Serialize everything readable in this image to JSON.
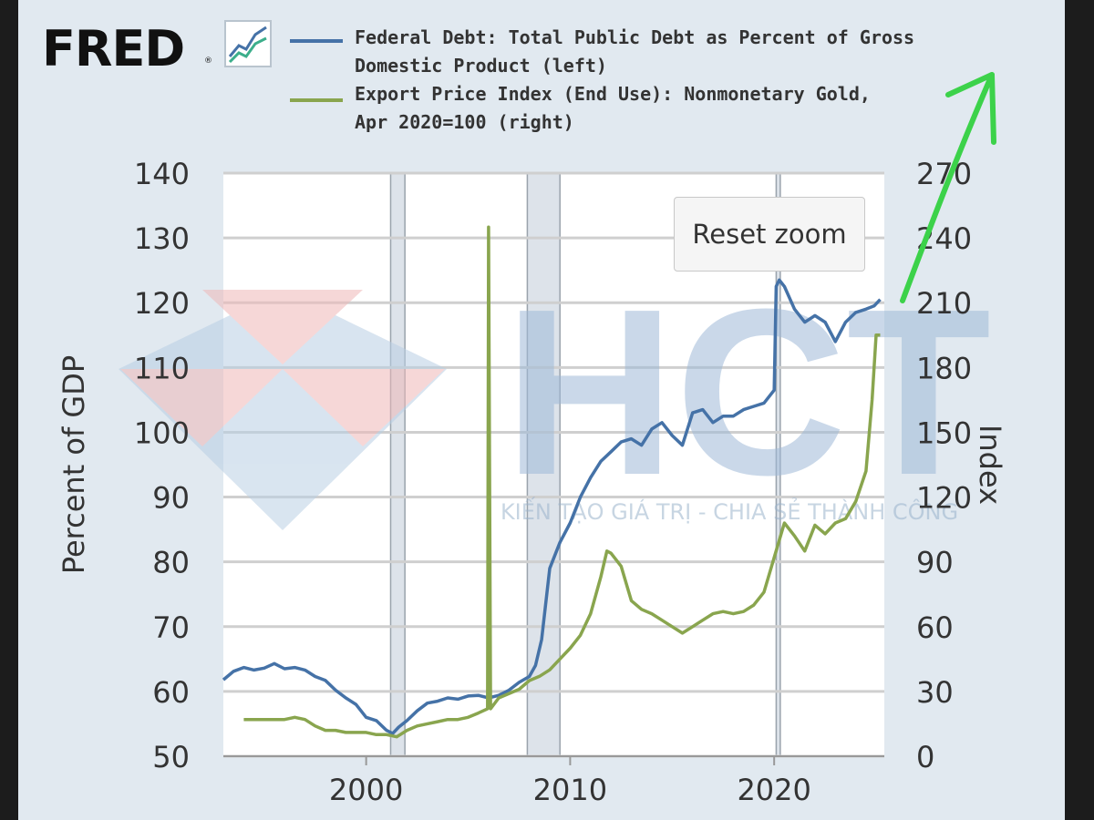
{
  "brand": {
    "name": "FRED",
    "mark": "®",
    "icon": "trend-chart-icon"
  },
  "legend": [
    {
      "lines": [
        "Federal Debt: Total Public Debt as Percent of Gross",
        "Domestic Product (left)"
      ],
      "color": "#4572a7"
    },
    {
      "lines": [
        "Export Price Index (End Use): Nonmonetary Gold,",
        "Apr 2020=100 (right)"
      ],
      "color": "#89a54e"
    }
  ],
  "controls": {
    "reset_zoom_label": "Reset zoom"
  },
  "watermark": {
    "letters": "HCT",
    "tagline": "KIẾN TẠO GIÁ TRỊ - CHIA SẺ THÀNH CÔNG"
  },
  "colors": {
    "debt": "#4572a7",
    "gold": "#89a54e",
    "recession": "#dde3ea",
    "annotation_arrow": "#3cd24a"
  },
  "chart_data": {
    "type": "line",
    "title": "",
    "xlabel": "",
    "ylabel_left": "Percent of GDP",
    "ylabel_right": "Index",
    "xlim": [
      1993.0,
      2025.4
    ],
    "ylim_left": [
      50,
      140
    ],
    "ylim_right": [
      0,
      270
    ],
    "x_ticks": [
      2000,
      2010,
      2020
    ],
    "y_ticks_left": [
      50,
      60,
      70,
      80,
      90,
      100,
      110,
      120,
      130,
      140
    ],
    "y_ticks_right": [
      0,
      30,
      60,
      90,
      120,
      150,
      180,
      210,
      240,
      270
    ],
    "grid": true,
    "recessions": [
      [
        2001.2,
        2001.9
      ],
      [
        2007.9,
        2009.5
      ],
      [
        2020.1,
        2020.3
      ]
    ],
    "series": [
      {
        "name": "Federal Debt: Total Public Debt as Percent of Gross Domestic Product (left)",
        "axis": "left",
        "x": [
          1993.0,
          1993.5,
          1994.0,
          1994.5,
          1995.0,
          1995.5,
          1996.0,
          1996.5,
          1997.0,
          1997.5,
          1998.0,
          1998.5,
          1999.0,
          1999.5,
          2000.0,
          2000.5,
          2001.0,
          2001.3,
          2001.6,
          2002.0,
          2002.5,
          2003.0,
          2003.5,
          2004.0,
          2004.5,
          2005.0,
          2005.5,
          2006.0,
          2006.5,
          2007.0,
          2007.5,
          2008.0,
          2008.3,
          2008.6,
          2009.0,
          2009.5,
          2010.0,
          2010.5,
          2011.0,
          2011.5,
          2012.0,
          2012.5,
          2013.0,
          2013.5,
          2014.0,
          2014.5,
          2015.0,
          2015.5,
          2016.0,
          2016.5,
          2017.0,
          2017.5,
          2018.0,
          2018.5,
          2019.0,
          2019.5,
          2020.0,
          2020.1,
          2020.25,
          2020.5,
          2021.0,
          2021.5,
          2022.0,
          2022.5,
          2023.0,
          2023.5,
          2024.0,
          2024.5,
          2024.9,
          2025.2
        ],
        "y": [
          61.8,
          63.1,
          63.7,
          63.3,
          63.6,
          64.3,
          63.5,
          63.7,
          63.3,
          62.3,
          61.7,
          60.2,
          59.0,
          58.0,
          56.0,
          55.5,
          54.0,
          53.5,
          54.5,
          55.5,
          57.0,
          58.2,
          58.5,
          59.0,
          58.8,
          59.3,
          59.4,
          59.0,
          59.4,
          60.2,
          61.4,
          62.3,
          64.0,
          68.0,
          79.0,
          83.0,
          86.0,
          90.0,
          93.0,
          95.5,
          97.0,
          98.5,
          99.0,
          98.0,
          100.5,
          101.5,
          99.5,
          98.0,
          103.0,
          103.5,
          101.5,
          102.5,
          102.5,
          103.5,
          104.0,
          104.5,
          106.5,
          122.5,
          123.5,
          122.5,
          119.0,
          117.0,
          118.0,
          117.0,
          114.0,
          117.0,
          118.5,
          119.0,
          119.5,
          120.5
        ]
      },
      {
        "name": "Export Price Index (End Use): Nonmonetary Gold, Apr 2020=100 (right)",
        "axis": "right",
        "x": [
          1994.0,
          1995.0,
          1996.0,
          1996.5,
          1997.0,
          1997.5,
          1998.0,
          1998.5,
          1999.0,
          1999.5,
          2000.0,
          2000.5,
          2001.0,
          2001.5,
          2002.0,
          2002.5,
          2003.0,
          2003.5,
          2004.0,
          2004.5,
          2005.0,
          2005.5,
          2005.95,
          2006.0,
          2006.1,
          2006.5,
          2007.0,
          2007.5,
          2008.0,
          2008.5,
          2009.0,
          2009.5,
          2010.0,
          2010.5,
          2011.0,
          2011.5,
          2011.8,
          2012.0,
          2012.5,
          2013.0,
          2013.5,
          2014.0,
          2014.5,
          2015.0,
          2015.5,
          2016.0,
          2016.5,
          2017.0,
          2017.5,
          2018.0,
          2018.5,
          2019.0,
          2019.5,
          2020.0,
          2020.5,
          2021.0,
          2021.5,
          2022.0,
          2022.5,
          2023.0,
          2023.5,
          2024.0,
          2024.5,
          2024.8,
          2025.0,
          2025.2
        ],
        "y": [
          17,
          17,
          17,
          18,
          17,
          14,
          12,
          12,
          11,
          11,
          11,
          10,
          10,
          9,
          12,
          14,
          15,
          16,
          17,
          17,
          18,
          20,
          22,
          245,
          22,
          27,
          29,
          31,
          35,
          37,
          40,
          45,
          50,
          56,
          66,
          83,
          95,
          94,
          88,
          72,
          68,
          66,
          63,
          60,
          57,
          60,
          63,
          66,
          67,
          66,
          67,
          70,
          76,
          92,
          108,
          102,
          95,
          107,
          103,
          108,
          110,
          118,
          132,
          165,
          195,
          195
        ]
      }
    ]
  }
}
